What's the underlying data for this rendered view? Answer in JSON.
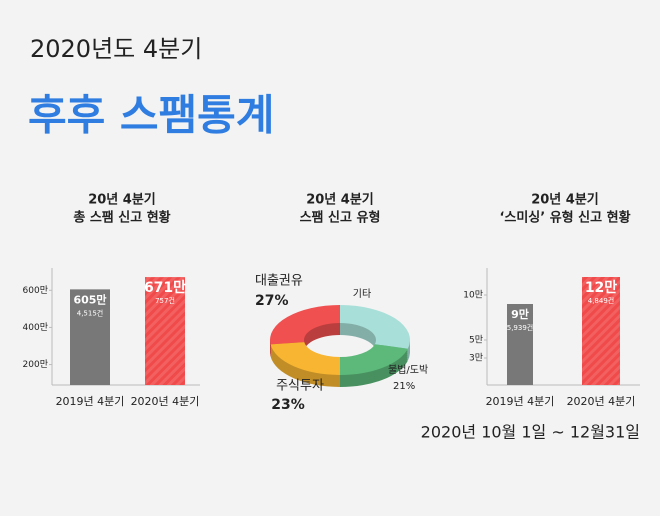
{
  "header": {
    "title": "2020년도 4분기",
    "headline": "후후 스팸통계"
  },
  "footer": "2020년 10월 1일 ~ 12월31일",
  "chart_data": [
    {
      "type": "bar",
      "title": "20년 4분기",
      "subtitle": "총 스팸 신고 현황",
      "categories": [
        "2019년 4분기",
        "2020년 4분기"
      ],
      "values": [
        605,
        671
      ],
      "value_labels": [
        "605만",
        "671만"
      ],
      "sublabels": [
        "4,515건",
        "757건"
      ],
      "colors": [
        "#787878",
        "#f04a4a"
      ],
      "ylim": [
        90,
        720
      ],
      "yticks": [
        {
          "value": 200,
          "label": "200만"
        },
        {
          "value": 400,
          "label": "400만"
        },
        {
          "value": 600,
          "label": "600만"
        }
      ]
    },
    {
      "type": "pie",
      "title": "20년 4분기",
      "subtitle": "스팸 신고 유형",
      "categories": [
        "대출권유",
        "기타",
        "불법/도박",
        "주식투자"
      ],
      "values": [
        27,
        29,
        21,
        23
      ],
      "value_labels": [
        "27%",
        null,
        "21%",
        "23%"
      ],
      "colors": [
        "#f05050",
        "#a8dfd8",
        "#5cb97a",
        "#f7b531"
      ]
    },
    {
      "type": "bar",
      "title": "20년 4분기",
      "subtitle": "‘스미싱’ 유형 신고 현황",
      "categories": [
        "2019년 4분기",
        "2020년 4분기"
      ],
      "values": [
        9,
        12
      ],
      "value_labels": [
        "9만",
        "12만"
      ],
      "sublabels": [
        "5,939건",
        "4,849건"
      ],
      "colors": [
        "#787878",
        "#f04a4a"
      ],
      "ylim": [
        0,
        13
      ],
      "yticks": [
        {
          "value": 3,
          "label": "3만"
        },
        {
          "value": 5,
          "label": "5만"
        },
        {
          "value": 10,
          "label": "10만"
        }
      ]
    }
  ]
}
